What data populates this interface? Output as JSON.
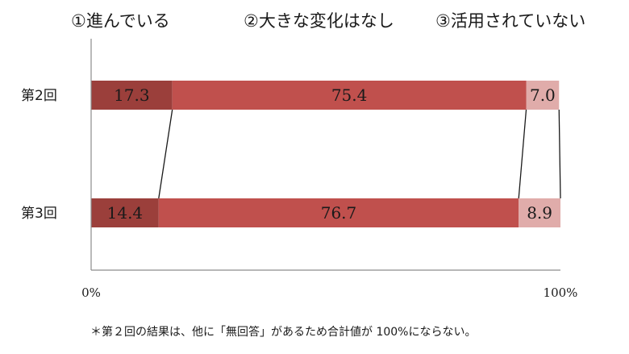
{
  "chart_data": {
    "type": "bar",
    "orientation": "horizontal",
    "stacked": true,
    "legend_position": "top",
    "grid": false,
    "xlim": [
      0,
      100
    ],
    "x_ticks": [
      "0%",
      "100%"
    ],
    "categories": [
      "第2回",
      "第3回"
    ],
    "series": [
      {
        "name": "①進んでいる",
        "values": [
          17.3,
          14.4
        ],
        "labels": [
          "17.3",
          "14.4"
        ],
        "color": "#9b3f3b"
      },
      {
        "name": "②大きな変化はなし",
        "values": [
          75.4,
          76.7
        ],
        "labels": [
          "75.4",
          "76.7"
        ],
        "color": "#c0504d"
      },
      {
        "name": "③活用されていない",
        "values": [
          7.0,
          8.9
        ],
        "labels": [
          "7.0",
          "8.9"
        ],
        "color": "#e0acaa"
      }
    ],
    "series_lines": true,
    "footnote": "＊第２回の結果は、他に「無回答」があるため合計値が 100%にならない。"
  }
}
